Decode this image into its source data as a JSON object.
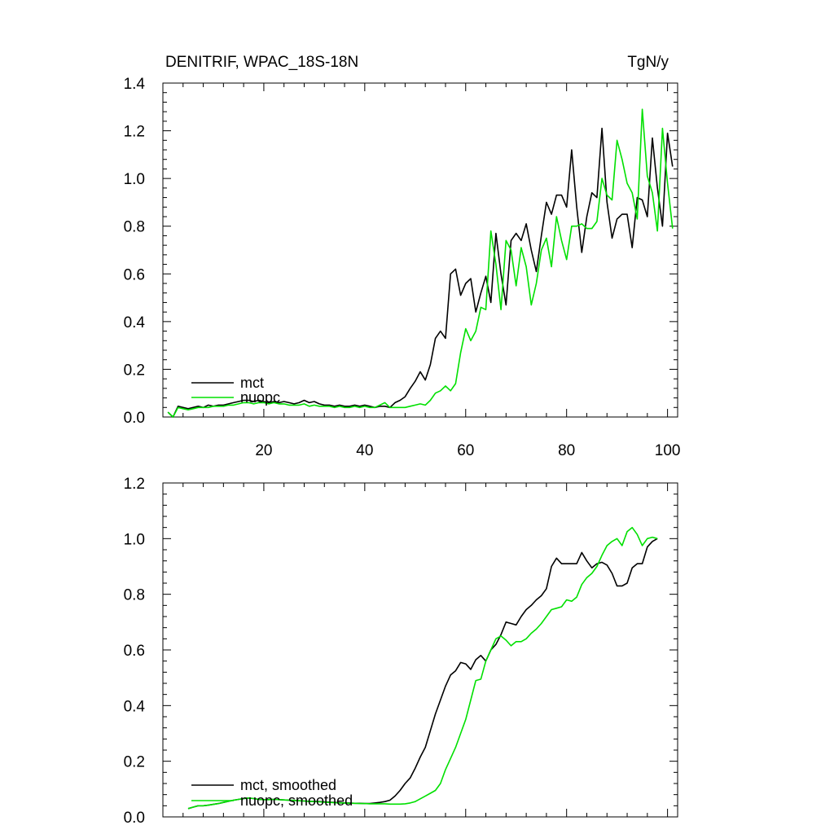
{
  "chart_data": [
    {
      "type": "line",
      "title": "DENITRIF, WPAC_18S-18N",
      "units": "TgN/y",
      "xlim": [
        0,
        102
      ],
      "ylim": [
        0,
        1.4
      ],
      "xticks": [
        20,
        40,
        60,
        80,
        100
      ],
      "xtick_labels": [
        "20",
        "40",
        "60",
        "80",
        "100"
      ],
      "yticks": [
        0,
        0.2,
        0.4,
        0.6,
        0.8,
        1.0,
        1.2,
        1.4
      ],
      "ytick_labels": [
        "0.0",
        "0.2",
        "0.4",
        "0.6",
        "0.8",
        "1.0",
        "1.2",
        "1.4"
      ],
      "grid": false,
      "legend_position": "bottom-left",
      "series": [
        {
          "name": "mct",
          "color": "#000000",
          "x": [
            1,
            2,
            3,
            4,
            5,
            6,
            7,
            8,
            9,
            10,
            11,
            12,
            13,
            14,
            15,
            16,
            17,
            18,
            19,
            20,
            21,
            22,
            23,
            24,
            25,
            26,
            27,
            28,
            29,
            30,
            31,
            32,
            33,
            34,
            35,
            36,
            37,
            38,
            39,
            40,
            41,
            42,
            43,
            44,
            45,
            46,
            47,
            48,
            49,
            50,
            51,
            52,
            53,
            54,
            55,
            56,
            57,
            58,
            59,
            60,
            61,
            62,
            63,
            64,
            65,
            66,
            67,
            68,
            69,
            70,
            71,
            72,
            73,
            74,
            75,
            76,
            77,
            78,
            79,
            80,
            81,
            82,
            83,
            84,
            85,
            86,
            87,
            88,
            89,
            90,
            91,
            92,
            93,
            94,
            95,
            96,
            97,
            98,
            99,
            100,
            101
          ],
          "y": [
            0.02,
            0.0,
            0.045,
            0.04,
            0.035,
            0.04,
            0.045,
            0.04,
            0.05,
            0.045,
            0.05,
            0.05,
            0.055,
            0.06,
            0.065,
            0.07,
            0.07,
            0.065,
            0.07,
            0.065,
            0.06,
            0.065,
            0.06,
            0.065,
            0.06,
            0.055,
            0.06,
            0.07,
            0.06,
            0.065,
            0.055,
            0.05,
            0.05,
            0.045,
            0.05,
            0.045,
            0.045,
            0.05,
            0.045,
            0.05,
            0.045,
            0.04,
            0.045,
            0.045,
            0.04,
            0.06,
            0.07,
            0.085,
            0.12,
            0.15,
            0.19,
            0.155,
            0.22,
            0.33,
            0.36,
            0.33,
            0.6,
            0.62,
            0.51,
            0.56,
            0.58,
            0.44,
            0.52,
            0.59,
            0.48,
            0.77,
            0.6,
            0.47,
            0.74,
            0.77,
            0.74,
            0.81,
            0.7,
            0.61,
            0.76,
            0.9,
            0.85,
            0.93,
            0.93,
            0.88,
            1.12,
            0.88,
            0.69,
            0.84,
            0.94,
            0.92,
            1.21,
            0.9,
            0.75,
            0.83,
            0.85,
            0.85,
            0.71,
            0.92,
            0.91,
            0.84,
            1.17,
            0.96,
            0.8,
            1.19,
            1.05
          ]
        },
        {
          "name": "nuopc",
          "color": "#00e000",
          "x": [
            1,
            2,
            3,
            4,
            5,
            6,
            7,
            8,
            9,
            10,
            11,
            12,
            13,
            14,
            15,
            16,
            17,
            18,
            19,
            20,
            21,
            22,
            23,
            24,
            25,
            26,
            27,
            28,
            29,
            30,
            31,
            32,
            33,
            34,
            35,
            36,
            37,
            38,
            39,
            40,
            41,
            42,
            43,
            44,
            45,
            46,
            47,
            48,
            49,
            50,
            51,
            52,
            53,
            54,
            55,
            56,
            57,
            58,
            59,
            60,
            61,
            62,
            63,
            64,
            65,
            66,
            67,
            68,
            69,
            70,
            71,
            72,
            73,
            74,
            75,
            76,
            77,
            78,
            79,
            80,
            81,
            82,
            83,
            84,
            85,
            86,
            87,
            88,
            89,
            90,
            91,
            92,
            93,
            94,
            95,
            96,
            97,
            98,
            99,
            100,
            101
          ],
          "y": [
            0.02,
            0.0,
            0.04,
            0.035,
            0.03,
            0.035,
            0.04,
            0.04,
            0.04,
            0.045,
            0.045,
            0.045,
            0.05,
            0.05,
            0.055,
            0.06,
            0.06,
            0.055,
            0.06,
            0.06,
            0.055,
            0.06,
            0.055,
            0.055,
            0.05,
            0.05,
            0.05,
            0.055,
            0.045,
            0.05,
            0.045,
            0.045,
            0.045,
            0.04,
            0.045,
            0.04,
            0.04,
            0.045,
            0.04,
            0.045,
            0.04,
            0.04,
            0.05,
            0.06,
            0.04,
            0.04,
            0.04,
            0.04,
            0.045,
            0.05,
            0.055,
            0.05,
            0.07,
            0.1,
            0.11,
            0.13,
            0.11,
            0.14,
            0.27,
            0.37,
            0.32,
            0.36,
            0.46,
            0.45,
            0.78,
            0.64,
            0.45,
            0.74,
            0.7,
            0.55,
            0.71,
            0.63,
            0.47,
            0.56,
            0.7,
            0.75,
            0.63,
            0.84,
            0.74,
            0.66,
            0.8,
            0.8,
            0.81,
            0.79,
            0.79,
            0.82,
            1.0,
            0.93,
            0.91,
            1.16,
            1.08,
            0.98,
            0.94,
            0.83,
            1.29,
            1.01,
            0.94,
            0.78,
            1.21,
            0.98,
            0.79
          ]
        }
      ]
    },
    {
      "type": "line",
      "xlim": [
        0,
        102
      ],
      "ylim": [
        0,
        1.2
      ],
      "xticks": [
        20,
        40,
        60,
        80,
        100
      ],
      "xtick_labels": [],
      "yticks": [
        0,
        0.2,
        0.4,
        0.6,
        0.8,
        1.0,
        1.2
      ],
      "ytick_labels": [
        "0.0",
        "0.2",
        "0.4",
        "0.6",
        "0.8",
        "1.0",
        "1.2"
      ],
      "grid": false,
      "legend_position": "bottom-left",
      "series": [
        {
          "name": "mct, smoothed",
          "color": "#000000",
          "x": [
            5,
            6,
            7,
            8,
            9,
            10,
            11,
            12,
            13,
            14,
            15,
            16,
            17,
            18,
            19,
            20,
            21,
            22,
            23,
            24,
            25,
            26,
            27,
            28,
            29,
            30,
            31,
            32,
            33,
            34,
            35,
            36,
            37,
            38,
            39,
            40,
            41,
            42,
            43,
            44,
            45,
            46,
            47,
            48,
            49,
            50,
            51,
            52,
            53,
            54,
            55,
            56,
            57,
            58,
            59,
            60,
            61,
            62,
            63,
            64,
            65,
            66,
            67,
            68,
            69,
            70,
            71,
            72,
            73,
            74,
            75,
            76,
            77,
            78,
            79,
            80,
            81,
            82,
            83,
            84,
            85,
            86,
            87,
            88,
            89,
            90,
            91,
            92,
            93,
            94,
            95,
            96,
            97,
            98
          ],
          "y": [
            0.03,
            0.035,
            0.04,
            0.04,
            0.042,
            0.045,
            0.048,
            0.052,
            0.056,
            0.06,
            0.063,
            0.066,
            0.068,
            0.066,
            0.063,
            0.062,
            0.062,
            0.063,
            0.062,
            0.061,
            0.06,
            0.059,
            0.058,
            0.057,
            0.056,
            0.056,
            0.055,
            0.054,
            0.053,
            0.052,
            0.051,
            0.05,
            0.05,
            0.049,
            0.049,
            0.048,
            0.048,
            0.05,
            0.052,
            0.055,
            0.06,
            0.075,
            0.095,
            0.12,
            0.14,
            0.175,
            0.215,
            0.25,
            0.31,
            0.37,
            0.42,
            0.47,
            0.51,
            0.525,
            0.555,
            0.55,
            0.53,
            0.565,
            0.58,
            0.56,
            0.6,
            0.62,
            0.655,
            0.7,
            0.695,
            0.69,
            0.72,
            0.745,
            0.76,
            0.78,
            0.795,
            0.82,
            0.9,
            0.93,
            0.91,
            0.91,
            0.91,
            0.91,
            0.95,
            0.92,
            0.895,
            0.91,
            0.915,
            0.905,
            0.875,
            0.83,
            0.83,
            0.84,
            0.895,
            0.91,
            0.91,
            0.97,
            0.99,
            1.0
          ]
        },
        {
          "name": "nuopc, smoothed",
          "color": "#00e000",
          "x": [
            5,
            6,
            7,
            8,
            9,
            10,
            11,
            12,
            13,
            14,
            15,
            16,
            17,
            18,
            19,
            20,
            21,
            22,
            23,
            24,
            25,
            26,
            27,
            28,
            29,
            30,
            31,
            32,
            33,
            34,
            35,
            36,
            37,
            38,
            39,
            40,
            41,
            42,
            43,
            44,
            45,
            46,
            47,
            48,
            49,
            50,
            51,
            52,
            53,
            54,
            55,
            56,
            57,
            58,
            59,
            60,
            61,
            62,
            63,
            64,
            65,
            66,
            67,
            68,
            69,
            70,
            71,
            72,
            73,
            74,
            75,
            76,
            77,
            78,
            79,
            80,
            81,
            82,
            83,
            84,
            85,
            86,
            87,
            88,
            89,
            90,
            91,
            92,
            93,
            94,
            95,
            96,
            97,
            98
          ],
          "y": [
            0.03,
            0.035,
            0.04,
            0.04,
            0.042,
            0.045,
            0.048,
            0.052,
            0.056,
            0.06,
            0.063,
            0.066,
            0.068,
            0.066,
            0.063,
            0.062,
            0.062,
            0.063,
            0.062,
            0.061,
            0.06,
            0.059,
            0.058,
            0.057,
            0.056,
            0.055,
            0.054,
            0.053,
            0.052,
            0.051,
            0.05,
            0.05,
            0.049,
            0.049,
            0.048,
            0.048,
            0.047,
            0.047,
            0.047,
            0.047,
            0.046,
            0.046,
            0.046,
            0.047,
            0.05,
            0.055,
            0.065,
            0.075,
            0.085,
            0.095,
            0.12,
            0.17,
            0.21,
            0.25,
            0.3,
            0.35,
            0.42,
            0.49,
            0.495,
            0.56,
            0.6,
            0.64,
            0.65,
            0.635,
            0.615,
            0.63,
            0.63,
            0.64,
            0.66,
            0.675,
            0.695,
            0.72,
            0.745,
            0.75,
            0.755,
            0.78,
            0.775,
            0.79,
            0.835,
            0.86,
            0.875,
            0.9,
            0.94,
            0.975,
            0.99,
            1.0,
            0.975,
            1.025,
            1.04,
            1.015,
            0.975,
            1.0,
            1.005,
            1.0
          ]
        }
      ]
    }
  ]
}
